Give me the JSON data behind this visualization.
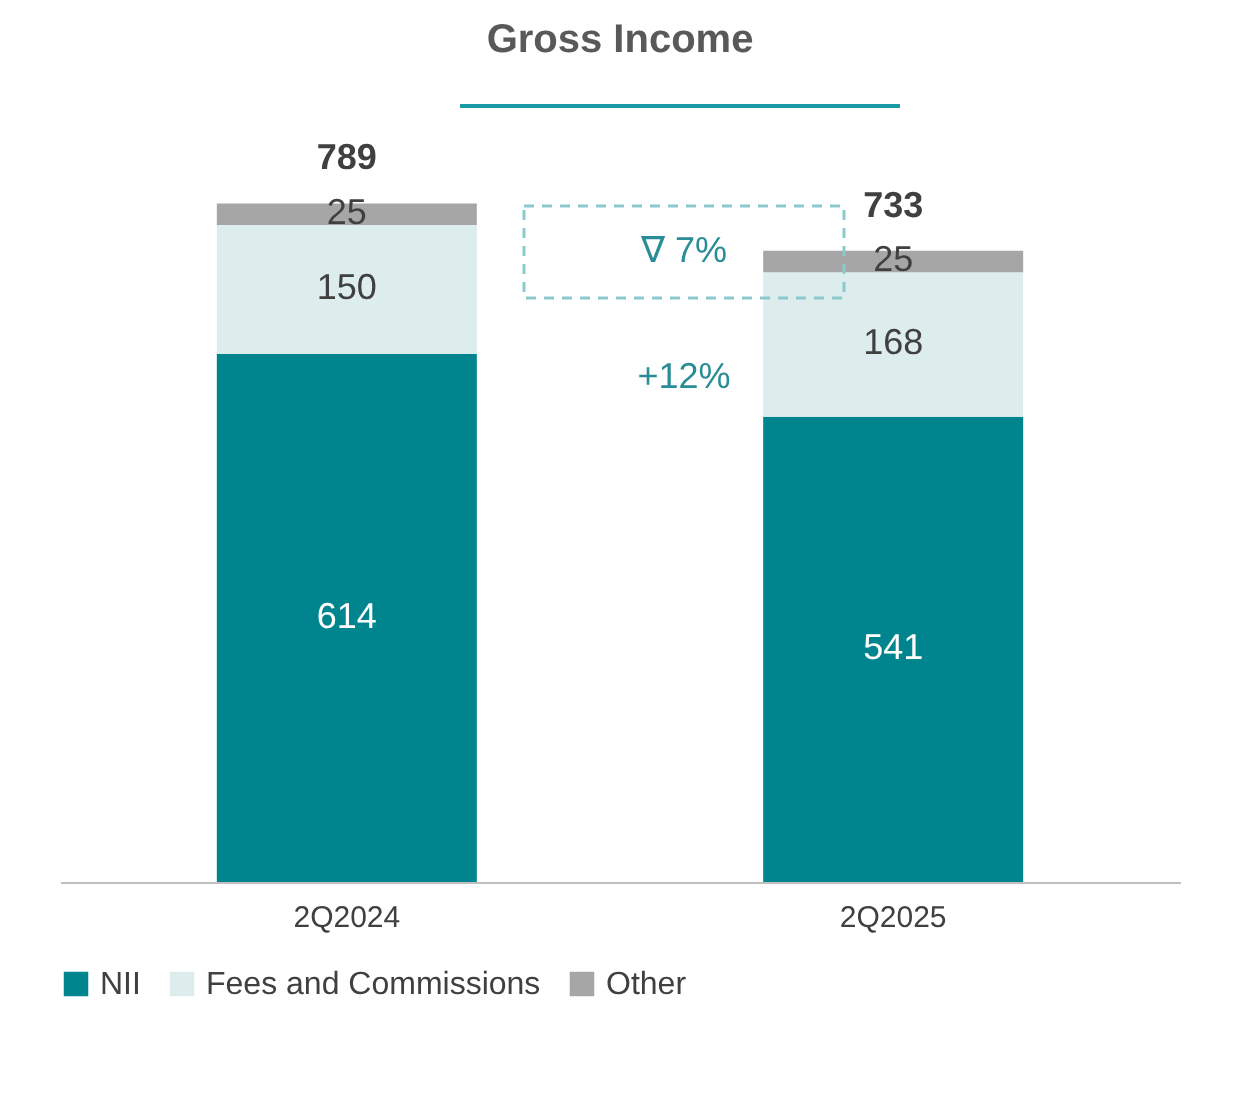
{
  "chart_data": {
    "type": "bar",
    "title": "Gross Income",
    "stacked": true,
    "data_labels": true,
    "legend": "bottom",
    "grid": false,
    "categories": [
      "2Q2024",
      "2Q2025"
    ],
    "series": [
      {
        "name": "NII",
        "color": "#00858f",
        "values": [
          614,
          541
        ]
      },
      {
        "name": "Fees and Commissions",
        "color": "#ddedee",
        "values": [
          150,
          168
        ]
      },
      {
        "name": "Other",
        "color": "#a6a6a6",
        "values": [
          25,
          25
        ]
      }
    ],
    "totals": [
      "789",
      "733"
    ],
    "annotations": [
      "∇ 7%",
      "+12%"
    ]
  }
}
